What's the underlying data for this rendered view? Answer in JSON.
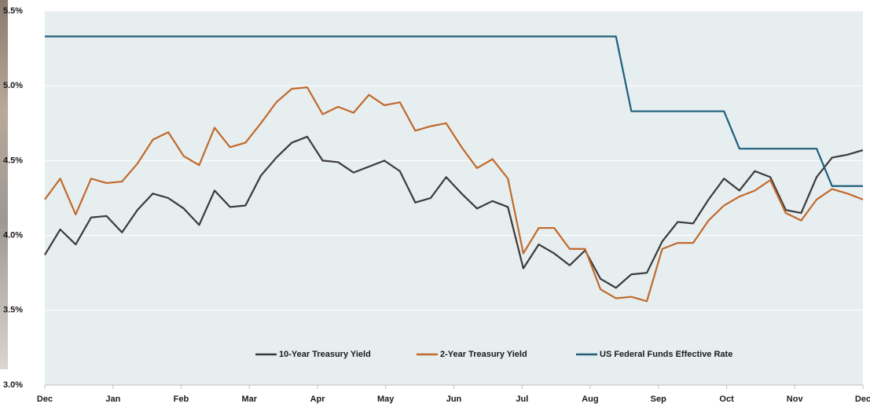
{
  "chart_data": {
    "type": "line",
    "x": [
      0,
      1,
      2,
      3,
      4,
      5,
      6,
      7,
      8,
      9,
      10,
      11,
      12,
      13,
      14,
      15,
      16,
      17,
      18,
      19,
      20,
      21,
      22,
      23,
      24,
      25,
      26,
      27,
      28,
      29,
      30,
      31,
      32,
      33,
      34,
      35,
      36,
      37,
      38,
      39,
      40,
      41,
      42,
      43,
      44,
      45,
      46,
      47,
      48,
      49,
      50,
      51,
      52,
      53
    ],
    "series": [
      {
        "name": "10-Year Treasury Yield",
        "color": "#3a3a3a",
        "values": [
          3.87,
          4.04,
          3.94,
          4.12,
          4.13,
          4.02,
          4.17,
          4.28,
          4.25,
          4.18,
          4.07,
          4.3,
          4.19,
          4.2,
          4.4,
          4.52,
          4.62,
          4.66,
          4.5,
          4.49,
          4.42,
          4.46,
          4.5,
          4.43,
          4.22,
          4.25,
          4.39,
          4.28,
          4.18,
          4.23,
          4.19,
          3.78,
          3.94,
          3.88,
          3.8,
          3.9,
          3.71,
          3.65,
          3.74,
          3.75,
          3.96,
          4.09,
          4.08,
          4.24,
          4.38,
          4.3,
          4.43,
          4.39,
          4.17,
          4.15,
          4.39,
          4.52,
          4.54,
          4.57
        ]
      },
      {
        "name": "2-Year Treasury Yield",
        "color": "#c0692b",
        "values": [
          4.24,
          4.38,
          4.14,
          4.38,
          4.35,
          4.36,
          4.48,
          4.64,
          4.69,
          4.53,
          4.47,
          4.72,
          4.59,
          4.62,
          4.75,
          4.89,
          4.98,
          4.99,
          4.81,
          4.86,
          4.82,
          4.94,
          4.87,
          4.89,
          4.7,
          4.73,
          4.75,
          4.59,
          4.45,
          4.51,
          4.38,
          3.88,
          4.05,
          4.05,
          3.91,
          3.91,
          3.64,
          3.58,
          3.59,
          3.56,
          3.91,
          3.95,
          3.95,
          4.1,
          4.2,
          4.26,
          4.3,
          4.37,
          4.15,
          4.1,
          4.24,
          4.31,
          4.28,
          4.24
        ]
      },
      {
        "name": "US Federal Funds Effective Rate",
        "color": "#1f5f7a",
        "values": [
          5.33,
          5.33,
          5.33,
          5.33,
          5.33,
          5.33,
          5.33,
          5.33,
          5.33,
          5.33,
          5.33,
          5.33,
          5.33,
          5.33,
          5.33,
          5.33,
          5.33,
          5.33,
          5.33,
          5.33,
          5.33,
          5.33,
          5.33,
          5.33,
          5.33,
          5.33,
          5.33,
          5.33,
          5.33,
          5.33,
          5.33,
          5.33,
          5.33,
          5.33,
          5.33,
          5.33,
          5.33,
          5.33,
          4.83,
          4.83,
          4.83,
          4.83,
          4.83,
          4.83,
          4.83,
          4.58,
          4.58,
          4.58,
          4.58,
          4.58,
          4.58,
          4.33,
          4.33,
          4.33
        ]
      }
    ],
    "xlim": [
      0,
      53
    ],
    "xticks": [
      {
        "value": 0,
        "label": "Dec"
      },
      {
        "value": 4.42,
        "label": "Jan"
      },
      {
        "value": 8.83,
        "label": "Feb"
      },
      {
        "value": 13.25,
        "label": "Mar"
      },
      {
        "value": 17.67,
        "label": "Apr"
      },
      {
        "value": 22.08,
        "label": "May"
      },
      {
        "value": 26.5,
        "label": "Jun"
      },
      {
        "value": 30.92,
        "label": "Jul"
      },
      {
        "value": 35.33,
        "label": "Aug"
      },
      {
        "value": 39.75,
        "label": "Sep"
      },
      {
        "value": 44.17,
        "label": "Oct"
      },
      {
        "value": 48.58,
        "label": "Nov"
      },
      {
        "value": 53,
        "label": "Dec"
      }
    ],
    "ylim": [
      3.0,
      5.5
    ],
    "yticks": [
      {
        "value": 3.0,
        "label": "3.0%"
      },
      {
        "value": 3.5,
        "label": "3.5%"
      },
      {
        "value": 4.0,
        "label": "4.0%"
      },
      {
        "value": 4.5,
        "label": "4.5%"
      },
      {
        "value": 5.0,
        "label": "5.0%"
      },
      {
        "value": 5.5,
        "label": "5.5%"
      }
    ],
    "grid": true,
    "legend": "bottom"
  }
}
